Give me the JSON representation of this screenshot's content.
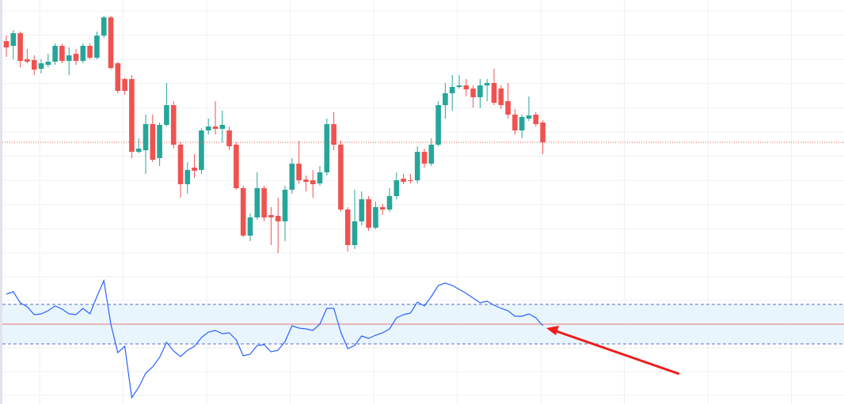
{
  "chart_data": [
    {
      "type": "candlestick",
      "up_color": "#26a69a",
      "down_color": "#ef5350",
      "ylim": [
        0,
        330
      ],
      "grid": true,
      "open": [
        278,
        272,
        288,
        255,
        254,
        243,
        248,
        252,
        272,
        253,
        262,
        253,
        272,
        257,
        285,
        308,
        250,
        230,
        230,
        138,
        140,
        173,
        130,
        172,
        197,
        147,
        97,
        118,
        115,
        165,
        170,
        167,
        165,
        147,
        92,
        32,
        55,
        92,
        58,
        57,
        50,
        90,
        123,
        103,
        102,
        98,
        112,
        173,
        147,
        65,
        20,
        50,
        78,
        42,
        68,
        65,
        82,
        104,
        102,
        102,
        138,
        123,
        147,
        197,
        212,
        220,
        222,
        218,
        207,
        222,
        225,
        218,
        202,
        185,
        165,
        180,
        185,
        175
      ],
      "high": [
        285,
        292,
        290,
        268,
        260,
        255,
        262,
        275,
        275,
        270,
        268,
        275,
        275,
        290,
        310,
        310,
        252,
        232,
        235,
        155,
        185,
        185,
        175,
        225,
        202,
        150,
        125,
        135,
        168,
        180,
        202,
        190,
        170,
        150,
        95,
        60,
        112,
        95,
        68,
        80,
        95,
        130,
        152,
        108,
        115,
        120,
        180,
        188,
        152,
        68,
        90,
        88,
        82,
        75,
        72,
        92,
        112,
        110,
        110,
        145,
        142,
        155,
        202,
        225,
        235,
        235,
        230,
        222,
        230,
        230,
        243,
        222,
        225,
        192,
        185,
        208,
        188,
        178
      ],
      "low": [
        258,
        255,
        245,
        250,
        235,
        237,
        245,
        248,
        250,
        235,
        248,
        250,
        255,
        255,
        282,
        242,
        212,
        210,
        130,
        136,
        110,
        125,
        120,
        170,
        142,
        80,
        85,
        105,
        110,
        160,
        160,
        150,
        140,
        90,
        30,
        25,
        52,
        50,
        20,
        10,
        25,
        85,
        98,
        88,
        80,
        95,
        108,
        140,
        62,
        12,
        15,
        45,
        38,
        40,
        58,
        62,
        78,
        97,
        98,
        98,
        118,
        120,
        145,
        180,
        190,
        218,
        208,
        194,
        193,
        202,
        197,
        192,
        180,
        160,
        155,
        177,
        170,
        135
      ],
      "close": [
        270,
        288,
        253,
        252,
        242,
        250,
        252,
        272,
        253,
        260,
        253,
        272,
        257,
        285,
        308,
        244,
        215,
        215,
        138,
        142,
        173,
        128,
        172,
        197,
        147,
        97,
        115,
        114,
        165,
        170,
        167,
        172,
        145,
        92,
        32,
        55,
        92,
        55,
        55,
        50,
        90,
        123,
        102,
        100,
        97,
        112,
        173,
        147,
        65,
        20,
        50,
        78,
        42,
        68,
        65,
        82,
        102,
        100,
        101,
        138,
        123,
        147,
        197,
        212,
        220,
        222,
        217,
        207,
        222,
        225,
        200,
        197,
        185,
        165,
        182,
        184,
        173,
        150
      ]
    },
    {
      "type": "line",
      "color": "#2962ff",
      "ylim": [
        0,
        171
      ],
      "values": [
        139,
        142,
        128,
        123,
        113,
        114,
        118,
        124,
        120,
        114,
        113,
        121,
        114,
        136,
        156,
        101,
        65,
        73,
        8,
        21,
        39,
        47,
        59,
        78,
        67,
        60,
        68,
        73,
        84,
        91,
        93,
        89,
        90,
        81,
        61,
        63,
        74,
        75,
        66,
        68,
        79,
        99,
        96,
        95,
        93,
        101,
        121,
        121,
        91,
        70,
        74,
        86,
        83,
        87,
        90,
        95,
        109,
        113,
        115,
        129,
        124,
        136,
        150,
        153,
        150,
        145,
        140,
        134,
        128,
        130,
        125,
        121,
        118,
        111,
        111,
        114,
        109,
        99
      ],
      "bands": {
        "upper": 126,
        "lower": 76,
        "middle": 101
      },
      "band_color": "#e3f2fd"
    }
  ]
}
